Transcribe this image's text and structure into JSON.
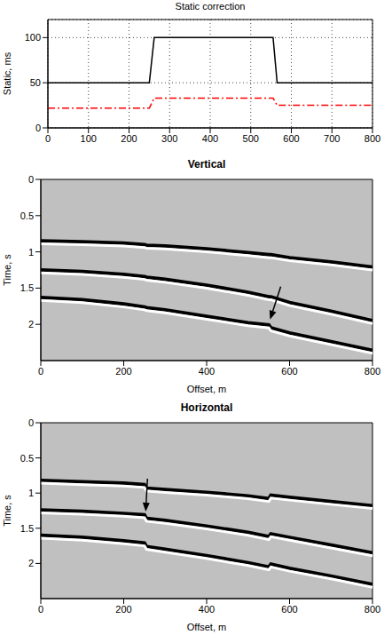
{
  "chart_data": [
    {
      "type": "line",
      "title": "Static correction",
      "y_label": "Static, ms",
      "x": [
        0,
        250,
        262,
        555,
        565,
        800
      ],
      "series": [
        {
          "color": "#000000",
          "line_style": "solid",
          "values": [
            50,
            50,
            100,
            100,
            50,
            50
          ]
        },
        {
          "color": "#ff0000",
          "line_style": "dashdot",
          "values": [
            22,
            22,
            33,
            33,
            25,
            25
          ]
        }
      ],
      "xlim": [
        0,
        800
      ],
      "xticks": [
        0,
        100,
        200,
        300,
        400,
        500,
        600,
        700,
        800
      ],
      "ylim": [
        0,
        120
      ],
      "yticks": [
        0,
        50,
        100
      ],
      "grid": true
    },
    {
      "type": "line",
      "title": "Vertical",
      "x_label": "Offset, m",
      "y_label": "Time, s",
      "x": [
        0,
        100,
        200,
        250,
        255,
        300,
        400,
        500,
        550,
        555,
        600,
        700,
        800
      ],
      "series": [
        {
          "color": "#000000",
          "values": [
            0.85,
            0.86,
            0.88,
            0.9,
            0.91,
            0.92,
            0.96,
            1.01,
            1.04,
            1.04,
            1.08,
            1.14,
            1.21
          ]
        },
        {
          "color": "#ffffff",
          "values": [
            0.89,
            0.9,
            0.92,
            0.94,
            0.95,
            0.96,
            1.0,
            1.05,
            1.08,
            1.08,
            1.12,
            1.18,
            1.25
          ]
        },
        {
          "color": "#000000",
          "values": [
            1.25,
            1.27,
            1.31,
            1.34,
            1.35,
            1.38,
            1.46,
            1.56,
            1.62,
            1.62,
            1.7,
            1.82,
            1.95
          ]
        },
        {
          "color": "#ffffff",
          "values": [
            1.29,
            1.31,
            1.35,
            1.38,
            1.39,
            1.42,
            1.5,
            1.6,
            1.66,
            1.66,
            1.74,
            1.86,
            1.99
          ]
        },
        {
          "color": "#000000",
          "values": [
            1.63,
            1.66,
            1.72,
            1.76,
            1.77,
            1.8,
            1.89,
            1.98,
            2.01,
            2.05,
            2.12,
            2.24,
            2.36
          ]
        },
        {
          "color": "#ffffff",
          "values": [
            1.67,
            1.7,
            1.76,
            1.8,
            1.81,
            1.84,
            1.93,
            2.02,
            2.05,
            2.09,
            2.16,
            2.28,
            2.4
          ]
        }
      ],
      "xlim": [
        0,
        800
      ],
      "xticks": [
        0,
        200,
        400,
        600,
        800
      ],
      "ylim": [
        0,
        2.5
      ],
      "yticks": [
        0,
        0.5,
        1,
        1.5,
        2
      ],
      "grid": false,
      "arrows": [
        {
          "x": 553,
          "y": 1.97
        }
      ]
    },
    {
      "type": "line",
      "title": "Horizontal",
      "x_label": "Offset, m",
      "y_label": "Time, s",
      "x": [
        0,
        100,
        200,
        250,
        255,
        300,
        400,
        500,
        550,
        555,
        600,
        700,
        800
      ],
      "series": [
        {
          "color": "#000000",
          "values": [
            0.82,
            0.84,
            0.86,
            0.88,
            0.93,
            0.95,
            0.99,
            1.04,
            1.08,
            1.03,
            1.06,
            1.12,
            1.18
          ]
        },
        {
          "color": "#ffffff",
          "values": [
            0.86,
            0.88,
            0.9,
            0.92,
            0.97,
            0.99,
            1.03,
            1.08,
            1.12,
            1.07,
            1.1,
            1.16,
            1.22
          ]
        },
        {
          "color": "#000000",
          "values": [
            1.24,
            1.26,
            1.29,
            1.31,
            1.36,
            1.39,
            1.47,
            1.56,
            1.62,
            1.58,
            1.63,
            1.74,
            1.85
          ]
        },
        {
          "color": "#ffffff",
          "values": [
            1.28,
            1.3,
            1.33,
            1.35,
            1.4,
            1.43,
            1.51,
            1.6,
            1.66,
            1.62,
            1.67,
            1.78,
            1.89
          ]
        },
        {
          "color": "#000000",
          "values": [
            1.6,
            1.63,
            1.68,
            1.71,
            1.76,
            1.8,
            1.89,
            1.99,
            2.05,
            2.01,
            2.07,
            2.18,
            2.3
          ]
        },
        {
          "color": "#ffffff",
          "values": [
            1.64,
            1.67,
            1.72,
            1.75,
            1.8,
            1.84,
            1.93,
            2.03,
            2.09,
            2.05,
            2.11,
            2.22,
            2.34
          ]
        }
      ],
      "xlim": [
        0,
        800
      ],
      "xticks": [
        0,
        200,
        400,
        600,
        800
      ],
      "ylim": [
        0,
        2.5
      ],
      "yticks": [
        0,
        0.5,
        1,
        1.5,
        2
      ],
      "grid": false,
      "arrows": [
        {
          "x": 253,
          "y": 1.3
        }
      ]
    }
  ]
}
